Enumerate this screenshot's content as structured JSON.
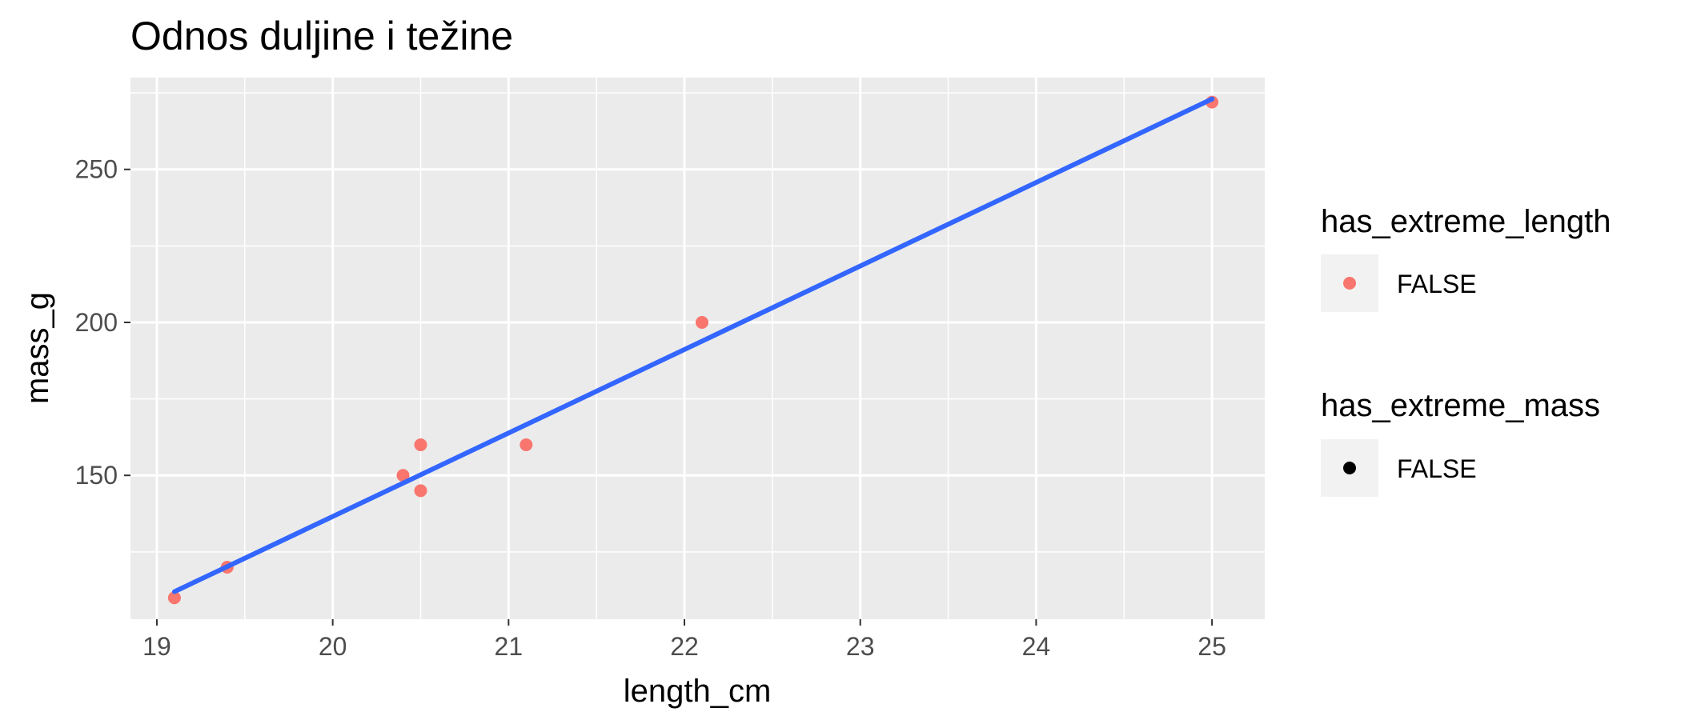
{
  "chart_data": {
    "type": "scatter",
    "title": "Odnos duljine i težine",
    "xlabel": "length_cm",
    "ylabel": "mass_g",
    "xlim": [
      18.85,
      25.3
    ],
    "ylim": [
      103,
      280
    ],
    "x_ticks": [
      19,
      20,
      21,
      22,
      23,
      24,
      25
    ],
    "y_ticks": [
      150,
      200,
      250
    ],
    "grid": true,
    "points": [
      {
        "x": 19.1,
        "y": 110
      },
      {
        "x": 19.4,
        "y": 120
      },
      {
        "x": 20.4,
        "y": 150
      },
      {
        "x": 20.5,
        "y": 160
      },
      {
        "x": 20.5,
        "y": 145
      },
      {
        "x": 21.1,
        "y": 160
      },
      {
        "x": 22.1,
        "y": 200
      },
      {
        "x": 25.0,
        "y": 272
      }
    ],
    "trend_line": {
      "x": [
        19.1,
        25.0
      ],
      "y": [
        112,
        273
      ]
    },
    "colors": {
      "point": "#f8766d",
      "trend": "#3366ff",
      "panel": "#ebebeb",
      "grid": "#ffffff"
    },
    "legend": {
      "position": "right",
      "groups": [
        {
          "title": "has_extreme_length",
          "label": "FALSE",
          "color": "#f8766d"
        },
        {
          "title": "has_extreme_mass",
          "label": "FALSE",
          "color": "#000000"
        }
      ]
    }
  }
}
